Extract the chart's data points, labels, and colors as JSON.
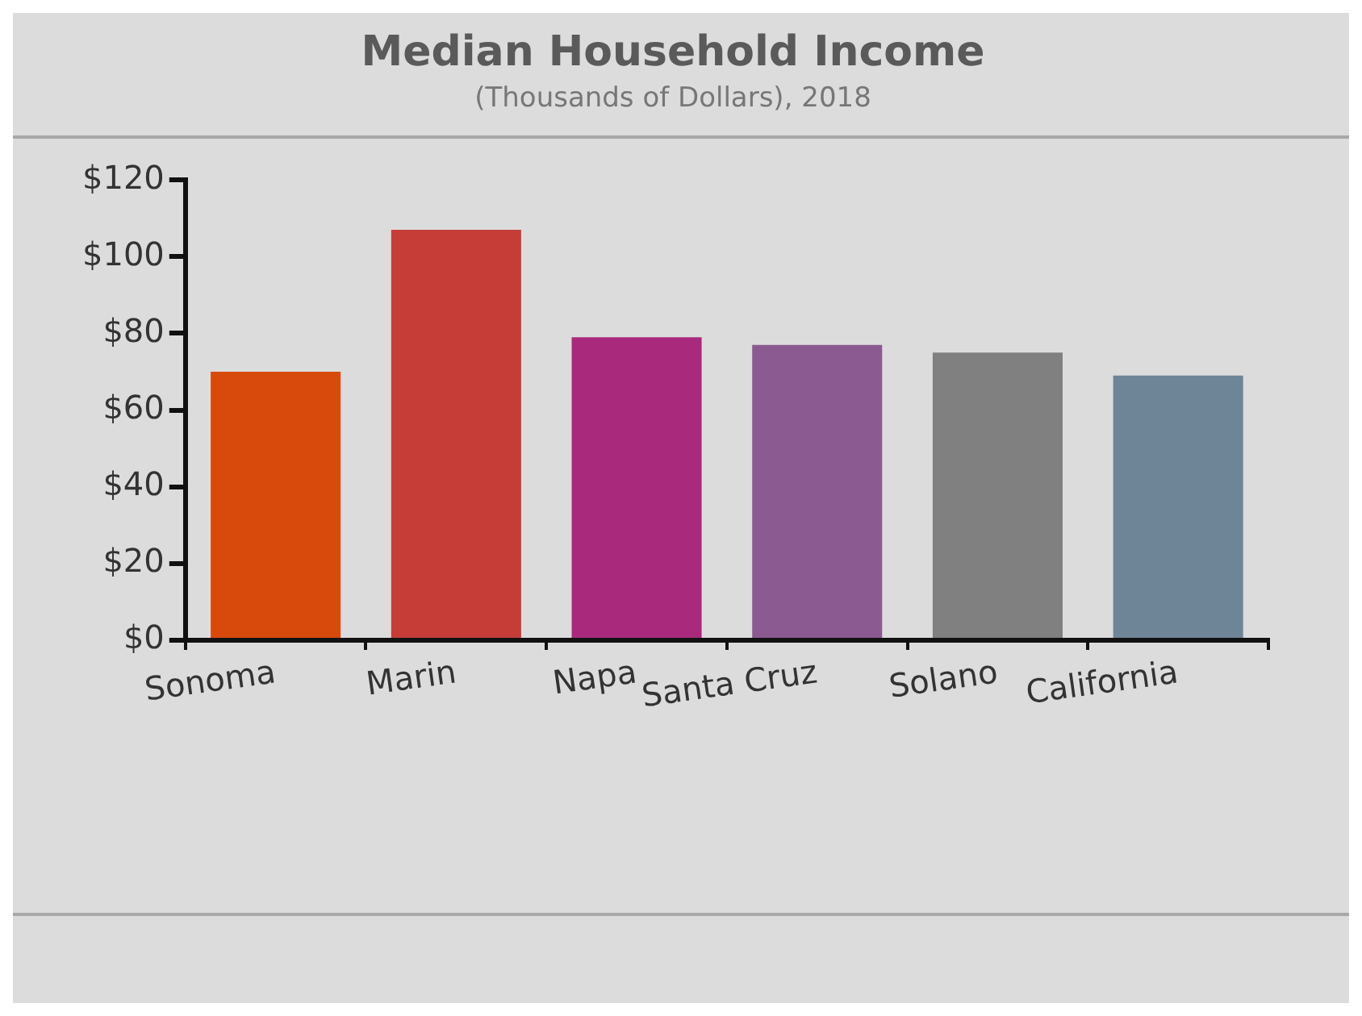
{
  "chart_data": {
    "type": "bar",
    "title": "Median Household Income",
    "subtitle": "(Thousands of Dollars), 2018",
    "categories": [
      "Sonoma",
      "Marin",
      "Napa",
      "Santa Cruz",
      "Solano",
      "California"
    ],
    "values": [
      70,
      107,
      79,
      77,
      75,
      69
    ],
    "colors": [
      "#d84a0c",
      "#c63d38",
      "#a92a7c",
      "#8b5a90",
      "#808080",
      "#6e8598"
    ],
    "ylim": [
      0,
      120
    ],
    "yticks": [
      {
        "value": 0,
        "label": "$0"
      },
      {
        "value": 20,
        "label": "$20"
      },
      {
        "value": 40,
        "label": "$40"
      },
      {
        "value": 60,
        "label": "$60"
      },
      {
        "value": 80,
        "label": "$80"
      },
      {
        "value": 100,
        "label": "$100"
      },
      {
        "value": 120,
        "label": "$120"
      }
    ],
    "grid": false,
    "legend": false
  }
}
